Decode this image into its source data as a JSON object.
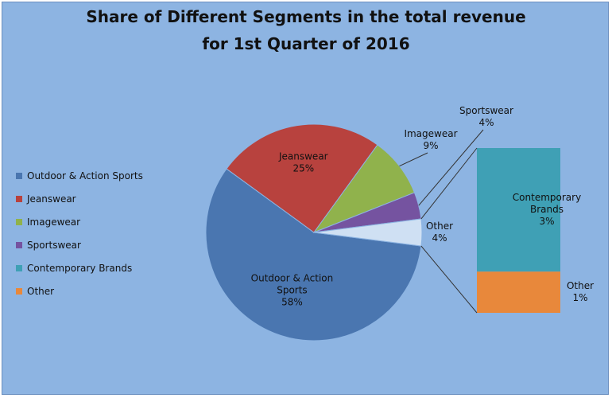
{
  "chart_data": {
    "type": "pie",
    "title_line1": "Share of Different Segments in the total revenue",
    "title_line2": "for 1st Quarter of 2016",
    "legend_position": "left",
    "slices": [
      {
        "label": "Outdoor & Action Sports",
        "label_lines": [
          "Outdoor & Action",
          "Sports"
        ],
        "value": 58,
        "pct": "58%",
        "color": "#4a76b0"
      },
      {
        "label": "Jeanswear",
        "label_lines": [
          "Jeanswear"
        ],
        "value": 25,
        "pct": "25%",
        "color": "#b8423e"
      },
      {
        "label": "Imagewear",
        "label_lines": [
          "Imagewear"
        ],
        "value": 9,
        "pct": "9%",
        "color": "#90b24c"
      },
      {
        "label": "Sportswear",
        "label_lines": [
          "Sportswear"
        ],
        "value": 4,
        "pct": "4%",
        "color": "#7553a0"
      },
      {
        "label": "Other",
        "label_lines": [
          "Other"
        ],
        "value": 4,
        "pct": "4%",
        "color": "#cfe0f3"
      }
    ],
    "breakdown": {
      "of": "Other",
      "items": [
        {
          "label": "Contemporary Brands",
          "label_lines": [
            "Contemporary",
            "Brands"
          ],
          "value": 3,
          "pct": "3%",
          "color": "#3fa0b5"
        },
        {
          "label": "Other",
          "label_lines": [
            "Other"
          ],
          "value": 1,
          "pct": "1%",
          "color": "#e8883b"
        }
      ]
    },
    "legend": [
      {
        "label": "Outdoor & Action Sports",
        "color": "#4a76b0"
      },
      {
        "label": "Jeanswear",
        "color": "#b8423e"
      },
      {
        "label": "Imagewear",
        "color": "#90b24c"
      },
      {
        "label": "Sportswear",
        "color": "#7553a0"
      },
      {
        "label": "Contemporary Brands",
        "color": "#3fa0b5"
      },
      {
        "label": "Other",
        "color": "#e8883b"
      }
    ]
  }
}
